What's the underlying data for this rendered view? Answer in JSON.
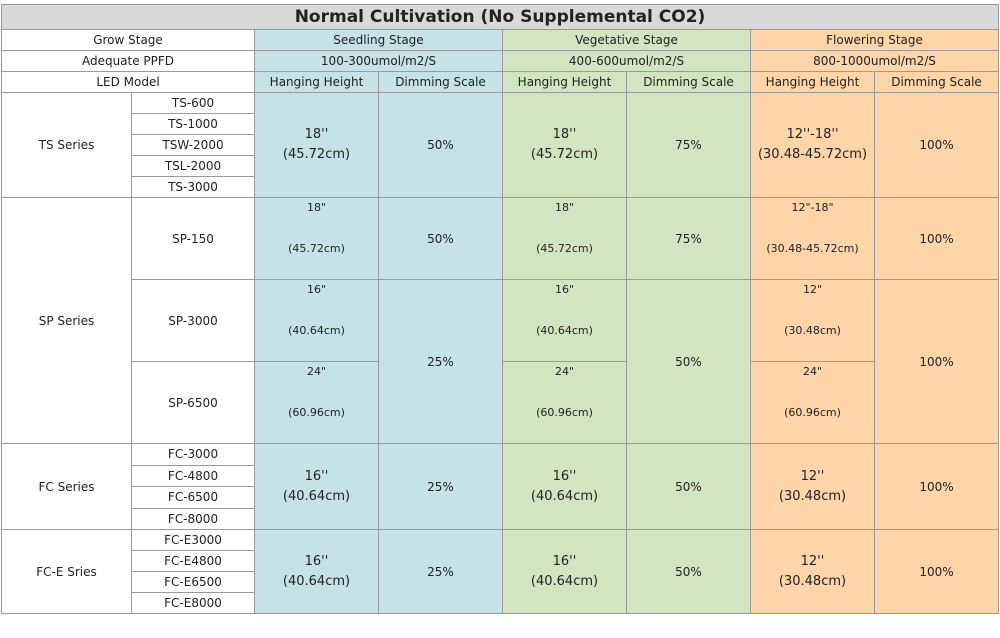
{
  "title": "Normal Cultivation (No Supplemental CO2)",
  "header": {
    "grow_stage": "Grow Stage",
    "stages": [
      "Seedling Stage",
      "Vegetative Stage",
      "Flowering Stage"
    ],
    "ppfd_label": "Adequate PPFD",
    "ppfd": [
      "100-300umol/m2/S",
      "400-600umol/m2/S",
      "800-1000umol/m2/S"
    ],
    "led_model": "LED Model",
    "hanging_height": "Hanging Height",
    "dimming_scale": "Dimming Scale"
  },
  "groups": [
    {
      "name": "TS Series",
      "models": [
        "TS-600",
        "TS-1000",
        "TSW-2000",
        "TSL-2000",
        "TS-3000"
      ],
      "stages": [
        {
          "heights": [
            [
              "18''",
              "(45.72cm)"
            ]
          ],
          "dims": [
            "50%"
          ]
        },
        {
          "heights": [
            [
              "18''",
              "(45.72cm)"
            ]
          ],
          "dims": [
            "75%"
          ]
        },
        {
          "heights": [
            [
              "12''-18''",
              "(30.48-45.72cm)"
            ]
          ],
          "dims": [
            "100%"
          ]
        }
      ]
    },
    {
      "name": "SP Series",
      "models": [
        "SP-150",
        "SP-3000",
        "SP-6500"
      ],
      "stages": [
        {
          "heights": [
            [
              "18\"",
              "(45.72cm)"
            ],
            [
              "16\"",
              "(40.64cm)"
            ],
            [
              "24\"",
              "(60.96cm)"
            ]
          ],
          "dims": [
            "50%",
            "25%"
          ]
        },
        {
          "heights": [
            [
              "18\"",
              "(45.72cm)"
            ],
            [
              "16\"",
              "(40.64cm)"
            ],
            [
              "24\"",
              "(60.96cm)"
            ]
          ],
          "dims": [
            "75%",
            "50%"
          ]
        },
        {
          "heights": [
            [
              "12\"-18\"",
              "(30.48-45.72cm)"
            ],
            [
              "12\"",
              "(30.48cm)"
            ],
            [
              "24\"",
              "(60.96cm)"
            ]
          ],
          "dims": [
            "100%",
            "100%"
          ]
        }
      ]
    },
    {
      "name": "FC Series",
      "models": [
        "FC-3000",
        "FC-4800",
        "FC-6500",
        "FC-8000"
      ],
      "stages": [
        {
          "heights": [
            [
              "16''",
              "(40.64cm)"
            ]
          ],
          "dims": [
            "25%"
          ]
        },
        {
          "heights": [
            [
              "16''",
              "(40.64cm)"
            ]
          ],
          "dims": [
            "50%"
          ]
        },
        {
          "heights": [
            [
              "12''",
              "(30.48cm)"
            ]
          ],
          "dims": [
            "100%"
          ]
        }
      ]
    },
    {
      "name": "FC-E Sries",
      "models": [
        "FC-E3000",
        "FC-E4800",
        "FC-E6500",
        "FC-E8000"
      ],
      "stages": [
        {
          "heights": [
            [
              "16''",
              "(40.64cm)"
            ]
          ],
          "dims": [
            "25%"
          ]
        },
        {
          "heights": [
            [
              "16''",
              "(40.64cm)"
            ]
          ],
          "dims": [
            "50%"
          ]
        },
        {
          "heights": [
            [
              "12''",
              "(30.48cm)"
            ]
          ],
          "dims": [
            "100%"
          ]
        }
      ]
    }
  ]
}
